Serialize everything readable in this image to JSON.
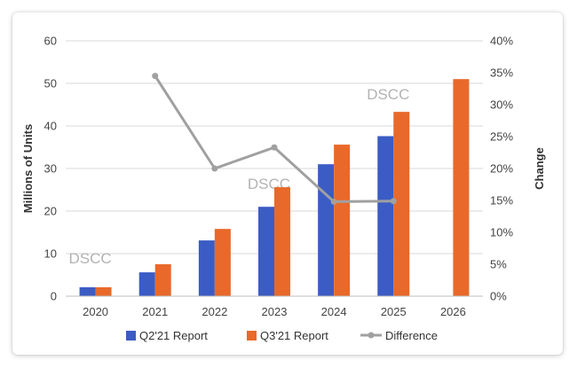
{
  "chart_data": {
    "type": "bar",
    "title": "",
    "categories": [
      "2020",
      "2021",
      "2022",
      "2023",
      "2024",
      "2025",
      "2026"
    ],
    "series": [
      {
        "name": "Q2'21 Report",
        "kind": "bar",
        "axis": "left",
        "color": "#3b5cc4",
        "values": [
          2.1,
          5.6,
          13.1,
          21.0,
          31.0,
          37.6,
          null
        ]
      },
      {
        "name": "Q3'21 Report",
        "kind": "bar",
        "axis": "left",
        "color": "#e8692a",
        "values": [
          2.1,
          7.5,
          15.8,
          25.6,
          35.6,
          43.3,
          51.0
        ]
      },
      {
        "name": "Difference",
        "kind": "line",
        "axis": "right",
        "color": "#a0a0a0",
        "values": [
          null,
          0.345,
          0.2,
          0.233,
          0.148,
          0.149,
          null
        ]
      }
    ],
    "ylabel": "Millions of Units",
    "y2label": "Change",
    "ylim": [
      0,
      60
    ],
    "y2lim": [
      0,
      0.4
    ],
    "yticks": [
      "0",
      "10",
      "20",
      "30",
      "40",
      "50",
      "60"
    ],
    "y2ticks": [
      "0%",
      "5%",
      "10%",
      "15%",
      "20%",
      "25%",
      "30%",
      "35%",
      "40%"
    ],
    "grid": true,
    "legend_position": "bottom",
    "watermarks": [
      {
        "text": "DSCC",
        "near": "2020"
      },
      {
        "text": "DSCC",
        "near": "2023"
      },
      {
        "text": "DSCC",
        "near": "2025"
      }
    ]
  }
}
